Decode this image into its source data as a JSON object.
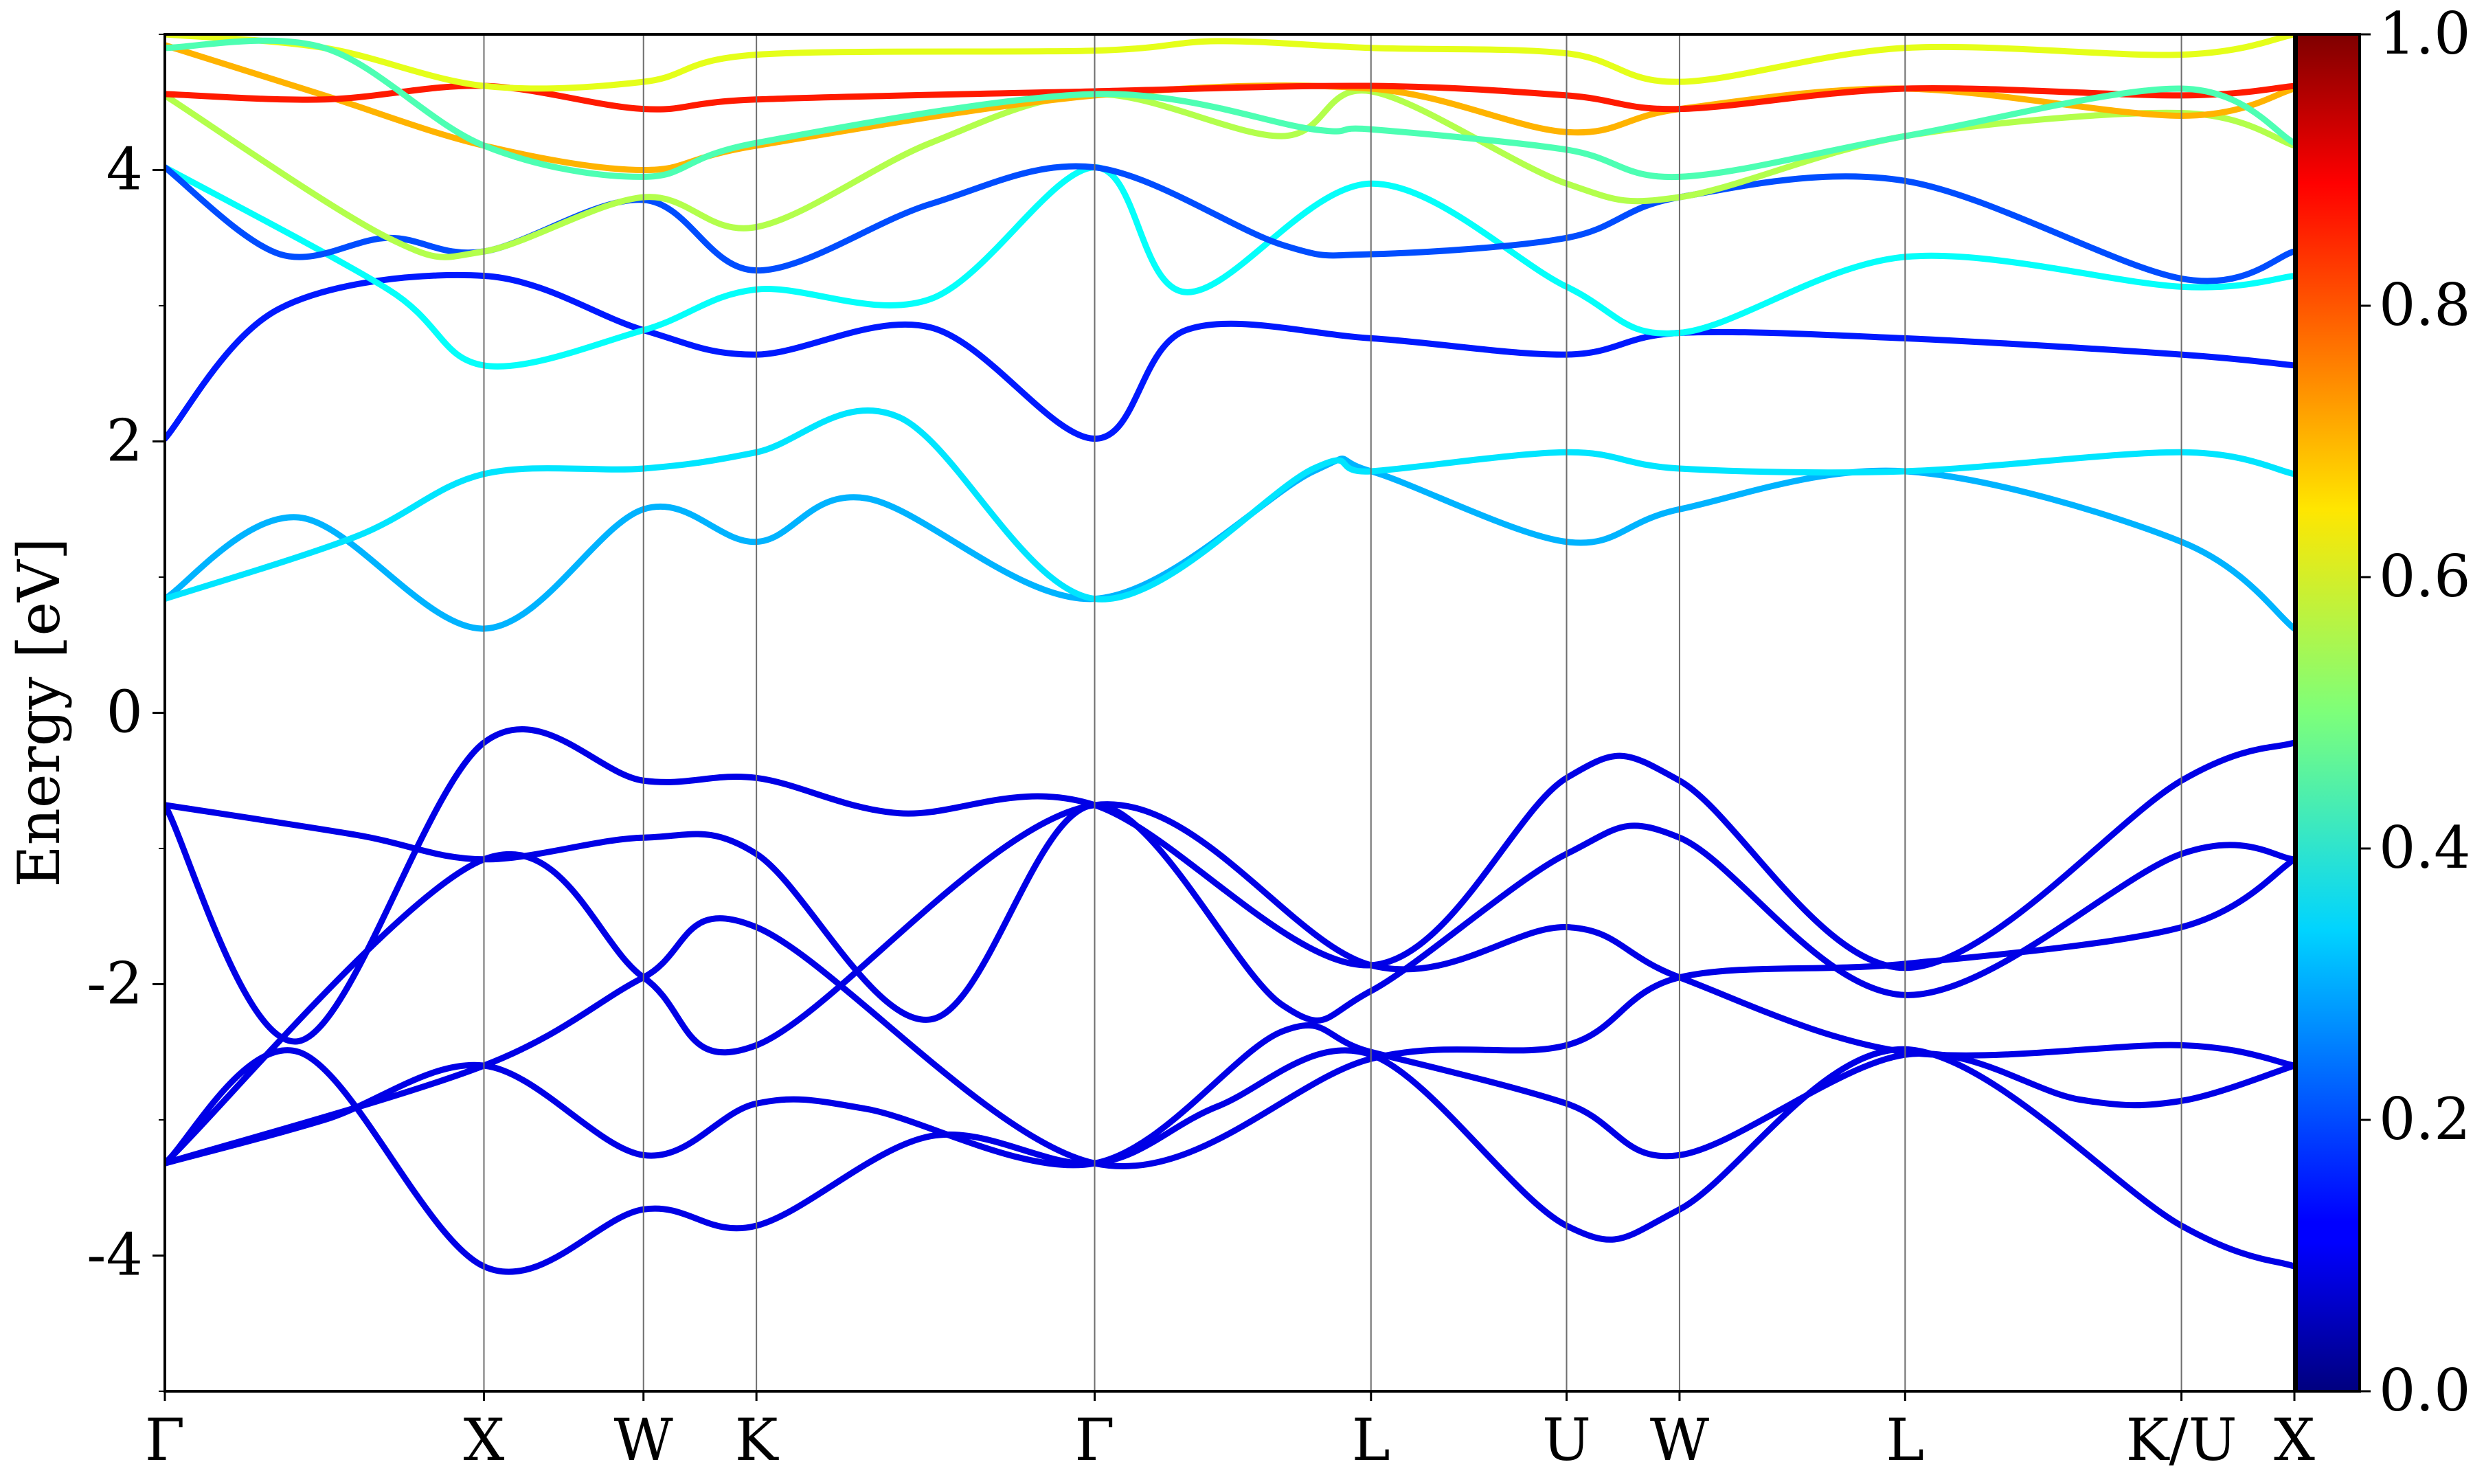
{
  "chart_data": {
    "type": "line",
    "subtype": "band-structure",
    "title": "",
    "xlabel": "",
    "ylabel": "Energy [eV]",
    "ylim": [
      -5,
      5
    ],
    "yticks": [
      "-4",
      "-2",
      "0",
      "2",
      "4"
    ],
    "kpath": [
      {
        "label": "Γ",
        "x": 0.0
      },
      {
        "label": "X",
        "x": 1.0
      },
      {
        "label": "W",
        "x": 1.5
      },
      {
        "label": "K",
        "x": 1.854
      },
      {
        "label": "Γ",
        "x": 2.914
      },
      {
        "label": "L",
        "x": 3.78
      },
      {
        "label": "U",
        "x": 4.393
      },
      {
        "label": "W",
        "x": 4.747
      },
      {
        "label": "L",
        "x": 5.454
      },
      {
        "label": "K/U",
        "x": 6.32
      },
      {
        "label": "X",
        "x": 6.674
      }
    ],
    "xlim": [
      0,
      6.674
    ],
    "grid": "vertical lines at high-symmetry points",
    "colorbar": {
      "colormap": "jet",
      "range": [
        0.0,
        1.0
      ],
      "ticks": [
        "0.0",
        "0.2",
        "0.4",
        "0.6",
        "0.8",
        "1.0"
      ]
    },
    "series": [
      {
        "weight": 0.1,
        "points": [
          [
            0,
            -3.32
          ],
          [
            0.42,
            -2.5
          ],
          [
            1.0,
            -4.08
          ],
          [
            1.5,
            -3.66
          ],
          [
            1.854,
            -3.78
          ],
          [
            2.4,
            -3.12
          ],
          [
            2.914,
            -3.32
          ],
          [
            3.3,
            -2.9
          ],
          [
            3.78,
            -2.52
          ],
          [
            4.393,
            -3.78
          ],
          [
            4.747,
            -3.66
          ],
          [
            5.454,
            -2.48
          ],
          [
            6.32,
            -3.78
          ],
          [
            6.674,
            -4.08
          ]
        ]
      },
      {
        "weight": 0.1,
        "points": [
          [
            0,
            -3.32
          ],
          [
            0.5,
            -3.0
          ],
          [
            1.0,
            -2.6
          ],
          [
            1.5,
            -3.26
          ],
          [
            1.854,
            -2.88
          ],
          [
            2.2,
            -2.92
          ],
          [
            2.914,
            -3.32
          ],
          [
            3.5,
            -2.35
          ],
          [
            3.78,
            -2.5
          ],
          [
            4.393,
            -2.88
          ],
          [
            4.747,
            -3.26
          ],
          [
            5.454,
            -2.52
          ],
          [
            6.0,
            -2.85
          ],
          [
            6.32,
            -2.86
          ],
          [
            6.674,
            -2.6
          ]
        ]
      },
      {
        "weight": 0.1,
        "points": [
          [
            0,
            -0.68
          ],
          [
            0.42,
            -2.42
          ],
          [
            1.0,
            -0.22
          ],
          [
            1.5,
            -0.5
          ],
          [
            1.854,
            -0.48
          ],
          [
            2.3,
            -0.74
          ],
          [
            2.914,
            -0.68
          ],
          [
            3.78,
            -1.86
          ],
          [
            4.393,
            -0.48
          ],
          [
            4.747,
            -0.5
          ],
          [
            5.454,
            -1.88
          ],
          [
            6.32,
            -0.5
          ],
          [
            6.674,
            -0.22
          ]
        ]
      },
      {
        "weight": 0.1,
        "points": [
          [
            0,
            -0.68
          ],
          [
            0.6,
            -0.9
          ],
          [
            1.0,
            -1.08
          ],
          [
            1.5,
            -0.92
          ],
          [
            1.854,
            -1.04
          ],
          [
            2.4,
            -2.26
          ],
          [
            2.914,
            -0.68
          ],
          [
            3.5,
            -2.15
          ],
          [
            3.78,
            -2.05
          ],
          [
            4.393,
            -1.04
          ],
          [
            4.747,
            -0.92
          ],
          [
            5.454,
            -2.08
          ],
          [
            6.32,
            -1.04
          ],
          [
            6.674,
            -1.08
          ]
        ]
      },
      {
        "weight": 0.1,
        "points": [
          [
            0,
            -3.32
          ],
          [
            1.0,
            -2.6
          ],
          [
            1.5,
            -1.95
          ],
          [
            1.854,
            -1.58
          ],
          [
            2.914,
            -3.32
          ],
          [
            3.78,
            -2.55
          ],
          [
            4.393,
            -2.45
          ],
          [
            4.747,
            -1.95
          ],
          [
            5.454,
            -1.85
          ],
          [
            6.32,
            -1.58
          ],
          [
            6.674,
            -1.08
          ]
        ]
      },
      {
        "weight": 0.1,
        "points": [
          [
            0,
            -3.32
          ],
          [
            1.0,
            -1.08
          ],
          [
            1.5,
            -1.95
          ],
          [
            1.854,
            -2.45
          ],
          [
            2.914,
            -0.68
          ],
          [
            3.78,
            -1.86
          ],
          [
            4.393,
            -1.58
          ],
          [
            4.747,
            -1.95
          ],
          [
            5.454,
            -2.5
          ],
          [
            6.32,
            -2.45
          ],
          [
            6.674,
            -2.6
          ]
        ]
      },
      {
        "weight": 0.3,
        "points": [
          [
            0,
            0.84
          ],
          [
            0.42,
            1.44
          ],
          [
            1.0,
            0.62
          ],
          [
            1.5,
            1.5
          ],
          [
            1.854,
            1.26
          ],
          [
            2.2,
            1.58
          ],
          [
            2.914,
            0.84
          ],
          [
            3.6,
            1.78
          ],
          [
            3.78,
            1.78
          ],
          [
            4.393,
            1.26
          ],
          [
            4.747,
            1.5
          ],
          [
            5.454,
            1.78
          ],
          [
            6.32,
            1.26
          ],
          [
            6.674,
            0.62
          ]
        ]
      },
      {
        "weight": 0.35,
        "points": [
          [
            0,
            0.84
          ],
          [
            0.6,
            1.3
          ],
          [
            1.0,
            1.76
          ],
          [
            1.5,
            1.8
          ],
          [
            1.854,
            1.92
          ],
          [
            2.3,
            2.18
          ],
          [
            2.914,
            0.84
          ],
          [
            3.6,
            1.8
          ],
          [
            3.78,
            1.78
          ],
          [
            4.393,
            1.92
          ],
          [
            4.747,
            1.8
          ],
          [
            5.454,
            1.78
          ],
          [
            6.32,
            1.92
          ],
          [
            6.674,
            1.76
          ]
        ]
      },
      {
        "weight": 0.15,
        "points": [
          [
            0,
            2.02
          ],
          [
            0.36,
            2.98
          ],
          [
            1.0,
            3.22
          ],
          [
            1.5,
            2.82
          ],
          [
            1.854,
            2.64
          ],
          [
            2.4,
            2.84
          ],
          [
            2.914,
            2.02
          ],
          [
            3.2,
            2.82
          ],
          [
            3.78,
            2.76
          ],
          [
            4.393,
            2.64
          ],
          [
            4.747,
            2.8
          ],
          [
            5.454,
            2.76
          ],
          [
            6.32,
            2.64
          ],
          [
            6.674,
            2.56
          ]
        ]
      },
      {
        "weight": 0.38,
        "points": [
          [
            0,
            4.02
          ],
          [
            0.7,
            3.12
          ],
          [
            1.0,
            2.56
          ],
          [
            1.5,
            2.82
          ],
          [
            1.854,
            3.12
          ],
          [
            2.4,
            3.05
          ],
          [
            2.914,
            4.02
          ],
          [
            3.2,
            3.1
          ],
          [
            3.78,
            3.9
          ],
          [
            4.393,
            3.14
          ],
          [
            4.747,
            2.8
          ],
          [
            5.454,
            3.36
          ],
          [
            6.32,
            3.14
          ],
          [
            6.674,
            3.22
          ]
        ]
      },
      {
        "weight": 0.2,
        "points": [
          [
            0,
            4.02
          ],
          [
            0.36,
            3.38
          ],
          [
            0.7,
            3.5
          ],
          [
            1.0,
            3.4
          ],
          [
            1.5,
            3.78
          ],
          [
            1.854,
            3.26
          ],
          [
            2.4,
            3.75
          ],
          [
            2.914,
            4.02
          ],
          [
            3.5,
            3.45
          ],
          [
            3.78,
            3.38
          ],
          [
            4.393,
            3.5
          ],
          [
            4.747,
            3.8
          ],
          [
            5.454,
            3.92
          ],
          [
            6.32,
            3.2
          ],
          [
            6.674,
            3.4
          ]
        ]
      },
      {
        "weight": 0.55,
        "points": [
          [
            0,
            4.55
          ],
          [
            0.7,
            3.5
          ],
          [
            1.0,
            3.4
          ],
          [
            1.5,
            3.8
          ],
          [
            1.854,
            3.58
          ],
          [
            2.4,
            4.2
          ],
          [
            2.914,
            4.56
          ],
          [
            3.5,
            4.25
          ],
          [
            3.78,
            4.58
          ],
          [
            4.393,
            3.9
          ],
          [
            4.747,
            3.8
          ],
          [
            5.454,
            4.25
          ],
          [
            6.32,
            4.42
          ],
          [
            6.674,
            4.18
          ]
        ]
      },
      {
        "weight": 0.7,
        "points": [
          [
            0,
            4.92
          ],
          [
            0.5,
            4.55
          ],
          [
            1.0,
            4.18
          ],
          [
            1.5,
            4.0
          ],
          [
            1.854,
            4.18
          ],
          [
            2.914,
            4.55
          ],
          [
            3.78,
            4.6
          ],
          [
            4.393,
            4.28
          ],
          [
            4.747,
            4.45
          ],
          [
            5.454,
            4.6
          ],
          [
            6.32,
            4.4
          ],
          [
            6.674,
            4.6
          ]
        ]
      },
      {
        "weight": 0.85,
        "points": [
          [
            0,
            4.56
          ],
          [
            0.5,
            4.52
          ],
          [
            1.0,
            4.62
          ],
          [
            1.5,
            4.45
          ],
          [
            1.854,
            4.52
          ],
          [
            2.914,
            4.58
          ],
          [
            3.78,
            4.62
          ],
          [
            4.393,
            4.55
          ],
          [
            4.747,
            4.45
          ],
          [
            5.454,
            4.6
          ],
          [
            6.32,
            4.55
          ],
          [
            6.674,
            4.62
          ]
        ]
      },
      {
        "weight": 0.6,
        "points": [
          [
            0,
            5.0
          ],
          [
            0.5,
            4.9
          ],
          [
            1.0,
            4.62
          ],
          [
            1.5,
            4.65
          ],
          [
            1.854,
            4.85
          ],
          [
            2.914,
            4.88
          ],
          [
            3.3,
            4.95
          ],
          [
            3.78,
            4.9
          ],
          [
            4.393,
            4.86
          ],
          [
            4.747,
            4.65
          ],
          [
            5.454,
            4.9
          ],
          [
            6.32,
            4.85
          ],
          [
            6.674,
            5.0
          ]
        ]
      },
      {
        "weight": 0.45,
        "points": [
          [
            0,
            4.9
          ],
          [
            0.5,
            4.9
          ],
          [
            1.0,
            4.18
          ],
          [
            1.5,
            3.95
          ],
          [
            1.854,
            4.2
          ],
          [
            2.914,
            4.56
          ],
          [
            3.6,
            4.3
          ],
          [
            3.78,
            4.3
          ],
          [
            4.393,
            4.15
          ],
          [
            4.747,
            3.95
          ],
          [
            5.454,
            4.25
          ],
          [
            6.32,
            4.6
          ],
          [
            6.674,
            4.2
          ]
        ]
      }
    ]
  }
}
